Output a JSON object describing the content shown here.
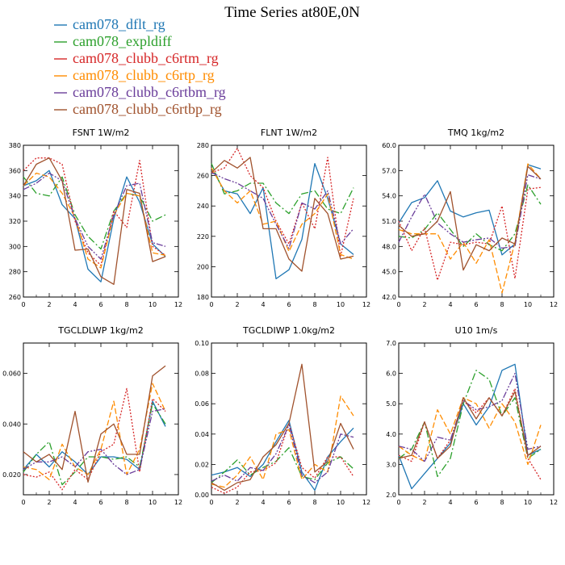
{
  "title": "Time Series at80E,0N",
  "colors": [
    "#1f77b4",
    "#2ca02c",
    "#d62728",
    "#ff8c00",
    "#6a3d9a",
    "#a0522d"
  ],
  "legend": [
    "cam078_dflt_rg",
    "cam078_expldiff",
    "cam078_clubb_c6rtm_rg",
    "cam078_clubb_c6rtp_rg",
    "cam078_clubb_c6rtbm_rg",
    "cam078_clubb_c6rtbp_rg"
  ],
  "chart_data": [
    {
      "type": "line",
      "title": "FSNT   1W/m2",
      "x": [
        0,
        1,
        2,
        3,
        4,
        5,
        6,
        7,
        8,
        9,
        10,
        11
      ],
      "xlim": [
        0,
        12
      ],
      "xticks": [
        "0",
        "2",
        "4",
        "6",
        "8",
        "10",
        "12"
      ],
      "ylim": [
        260,
        380
      ],
      "yticks": [
        "260",
        "280",
        "300",
        "320",
        "340",
        "360",
        "380"
      ],
      "series": [
        {
          "values": [
            348,
            352,
            360,
            333,
            322,
            282,
            272,
            322,
            355,
            335,
            302,
            292
          ]
        },
        {
          "values": [
            355,
            342,
            340,
            355,
            325,
            308,
            298,
            328,
            342,
            340,
            320,
            325
          ]
        },
        {
          "values": [
            360,
            370,
            370,
            365,
            320,
            295,
            285,
            328,
            315,
            368,
            300,
            293
          ]
        },
        {
          "values": [
            348,
            358,
            355,
            342,
            323,
            290,
            283,
            325,
            342,
            340,
            295,
            293
          ]
        },
        {
          "values": [
            345,
            350,
            358,
            352,
            322,
            300,
            290,
            325,
            348,
            350,
            303,
            300
          ]
        },
        {
          "values": [
            348,
            365,
            370,
            352,
            297,
            298,
            276,
            270,
            345,
            342,
            288,
            292
          ]
        }
      ]
    },
    {
      "type": "line",
      "title": "FLNT   1W/m2",
      "x": [
        0,
        1,
        2,
        3,
        4,
        5,
        6,
        7,
        8,
        9,
        10,
        11
      ],
      "xlim": [
        0,
        12
      ],
      "xticks": [
        "0",
        "2",
        "4",
        "6",
        "8",
        "10",
        "12"
      ],
      "ylim": [
        180,
        280
      ],
      "yticks": [
        "180",
        "200",
        "220",
        "240",
        "260",
        "280"
      ],
      "series": [
        {
          "values": [
            265,
            250,
            248,
            235,
            252,
            192,
            198,
            218,
            268,
            245,
            215,
            208
          ]
        },
        {
          "values": [
            268,
            248,
            250,
            255,
            255,
            242,
            235,
            248,
            250,
            238,
            235,
            252
          ]
        },
        {
          "values": [
            262,
            265,
            278,
            260,
            252,
            230,
            215,
            242,
            225,
            272,
            207,
            245
          ]
        },
        {
          "values": [
            265,
            250,
            242,
            250,
            228,
            230,
            210,
            228,
            235,
            248,
            208,
            205
          ]
        },
        {
          "values": [
            262,
            258,
            255,
            250,
            245,
            228,
            212,
            242,
            238,
            250,
            215,
            225
          ]
        },
        {
          "values": [
            262,
            270,
            265,
            272,
            225,
            225,
            205,
            197,
            245,
            235,
            205,
            207
          ]
        }
      ]
    },
    {
      "type": "line",
      "title": "TMQ   1kg/m2",
      "x": [
        0,
        1,
        2,
        3,
        4,
        5,
        6,
        7,
        8,
        9,
        10,
        11
      ],
      "xlim": [
        0,
        12
      ],
      "xticks": [
        "0",
        "2",
        "4",
        "6",
        "8",
        "10",
        "12"
      ],
      "ylim": [
        42,
        60
      ],
      "yticks": [
        "42.0",
        "45.0",
        "48.0",
        "51.0",
        "54.0",
        "57.0",
        "60.0"
      ],
      "series": [
        {
          "values": [
            50.8,
            53.2,
            53.8,
            55.8,
            52.2,
            51.5,
            52.0,
            52.3,
            47.0,
            48.3,
            57.7,
            57.2
          ]
        },
        {
          "values": [
            49.2,
            49.0,
            50.0,
            52.0,
            50.0,
            48.0,
            49.5,
            48.2,
            47.5,
            49.5,
            55.3,
            53.0
          ]
        },
        {
          "values": [
            51.0,
            47.5,
            50.2,
            44.0,
            48.5,
            48.2,
            48.5,
            48.3,
            52.8,
            44.2,
            54.8,
            55.0
          ]
        },
        {
          "values": [
            50.0,
            49.5,
            49.5,
            49.5,
            46.5,
            48.5,
            46.0,
            48.8,
            42.5,
            48.5,
            57.8,
            56.0
          ]
        },
        {
          "values": [
            48.5,
            51.5,
            54.2,
            50.8,
            49.5,
            48.5,
            48.8,
            49.0,
            47.8,
            48.0,
            56.5,
            56.0
          ]
        },
        {
          "values": [
            50.5,
            49.2,
            49.5,
            51.0,
            54.5,
            45.2,
            48.2,
            47.5,
            49.0,
            48.3,
            57.5,
            56.0
          ]
        }
      ]
    },
    {
      "type": "line",
      "title": "TGCLDLWP   1kg/m2",
      "x": [
        0,
        1,
        2,
        3,
        4,
        5,
        6,
        7,
        8,
        9,
        10,
        11
      ],
      "xlim": [
        0,
        12
      ],
      "xticks": [
        "0",
        "2",
        "4",
        "6",
        "8",
        "10",
        "12"
      ],
      "ylim": [
        0.012,
        0.072
      ],
      "yticks": [
        "0.020",
        "0.040",
        "0.060"
      ],
      "series": [
        {
          "values": [
            0.022,
            0.028,
            0.023,
            0.029,
            0.025,
            0.02,
            0.027,
            0.027,
            0.026,
            0.022,
            0.049,
            0.039
          ]
        },
        {
          "values": [
            0.021,
            0.028,
            0.033,
            0.016,
            0.021,
            0.027,
            0.027,
            0.026,
            0.027,
            0.023,
            0.048,
            0.04
          ]
        },
        {
          "values": [
            0.02,
            0.019,
            0.021,
            0.014,
            0.022,
            0.018,
            0.029,
            0.032,
            0.054,
            0.021,
            0.05,
            0.045
          ]
        },
        {
          "values": [
            0.023,
            0.022,
            0.018,
            0.032,
            0.023,
            0.02,
            0.03,
            0.049,
            0.02,
            0.03,
            0.056,
            0.045
          ]
        },
        {
          "values": [
            0.022,
            0.025,
            0.025,
            0.027,
            0.023,
            0.029,
            0.03,
            0.024,
            0.02,
            0.022,
            0.045,
            0.046
          ]
        },
        {
          "values": [
            0.029,
            0.025,
            0.028,
            0.022,
            0.045,
            0.017,
            0.036,
            0.04,
            0.028,
            0.028,
            0.059,
            0.063
          ]
        }
      ]
    },
    {
      "type": "line",
      "title": "TGCLDIWP   1.0kg/m2",
      "x": [
        0,
        1,
        2,
        3,
        4,
        5,
        6,
        7,
        8,
        9,
        10,
        11
      ],
      "xlim": [
        0,
        12
      ],
      "xticks": [
        "0",
        "2",
        "4",
        "6",
        "8",
        "10",
        "12"
      ],
      "ylim": [
        0,
        0.1
      ],
      "yticks": [
        "0.00",
        "0.02",
        "0.04",
        "0.06",
        "0.08",
        "0.10"
      ],
      "series": [
        {
          "values": [
            0.013,
            0.015,
            0.018,
            0.012,
            0.02,
            0.035,
            0.049,
            0.015,
            0.003,
            0.025,
            0.035,
            0.044
          ]
        },
        {
          "values": [
            0.008,
            0.015,
            0.023,
            0.013,
            0.018,
            0.022,
            0.031,
            0.012,
            0.01,
            0.021,
            0.025,
            0.017
          ]
        },
        {
          "values": [
            0.005,
            0.001,
            0.005,
            0.015,
            0.016,
            0.021,
            0.047,
            0.018,
            0.011,
            0.025,
            0.025,
            0.012
          ]
        },
        {
          "values": [
            0.007,
            0.005,
            0.013,
            0.025,
            0.01,
            0.04,
            0.043,
            0.01,
            0.02,
            0.015,
            0.065,
            0.052
          ]
        },
        {
          "values": [
            0.009,
            0.013,
            0.009,
            0.018,
            0.016,
            0.027,
            0.046,
            0.013,
            0.008,
            0.015,
            0.04,
            0.038
          ]
        },
        {
          "values": [
            0.008,
            0.003,
            0.008,
            0.01,
            0.025,
            0.033,
            0.047,
            0.086,
            0.015,
            0.022,
            0.047,
            0.03
          ]
        }
      ]
    },
    {
      "type": "line",
      "title": "U10   1m/s",
      "x": [
        0,
        1,
        2,
        3,
        4,
        5,
        6,
        7,
        8,
        9,
        10,
        11
      ],
      "xlim": [
        0,
        12
      ],
      "xticks": [
        "0",
        "2",
        "4",
        "6",
        "8",
        "10",
        "12"
      ],
      "ylim": [
        2,
        7
      ],
      "yticks": [
        "2.0",
        "3.0",
        "4.0",
        "5.0",
        "6.0",
        "7.0"
      ],
      "series": [
        {
          "values": [
            3.3,
            2.2,
            2.7,
            3.2,
            3.7,
            5.0,
            4.3,
            4.9,
            6.1,
            6.3,
            3.3,
            3.5
          ]
        },
        {
          "values": [
            3.2,
            3.5,
            4.4,
            2.6,
            3.2,
            5.0,
            6.1,
            5.8,
            4.6,
            5.2,
            3.2,
            3.5
          ]
        },
        {
          "values": [
            3.3,
            3.1,
            4.4,
            3.2,
            3.8,
            5.1,
            4.7,
            5.2,
            4.6,
            5.5,
            3.2,
            2.5
          ]
        },
        {
          "values": [
            3.6,
            3.3,
            3.1,
            4.8,
            4.0,
            5.2,
            5.0,
            4.2,
            5.0,
            4.4,
            3.0,
            4.3
          ]
        },
        {
          "values": [
            3.6,
            3.5,
            3.1,
            3.9,
            3.8,
            5.1,
            4.8,
            4.9,
            5.1,
            6.0,
            3.5,
            3.6
          ]
        },
        {
          "values": [
            3.2,
            3.3,
            4.4,
            3.2,
            3.6,
            5.2,
            4.5,
            5.2,
            4.6,
            5.4,
            3.3,
            3.6
          ]
        }
      ]
    }
  ]
}
